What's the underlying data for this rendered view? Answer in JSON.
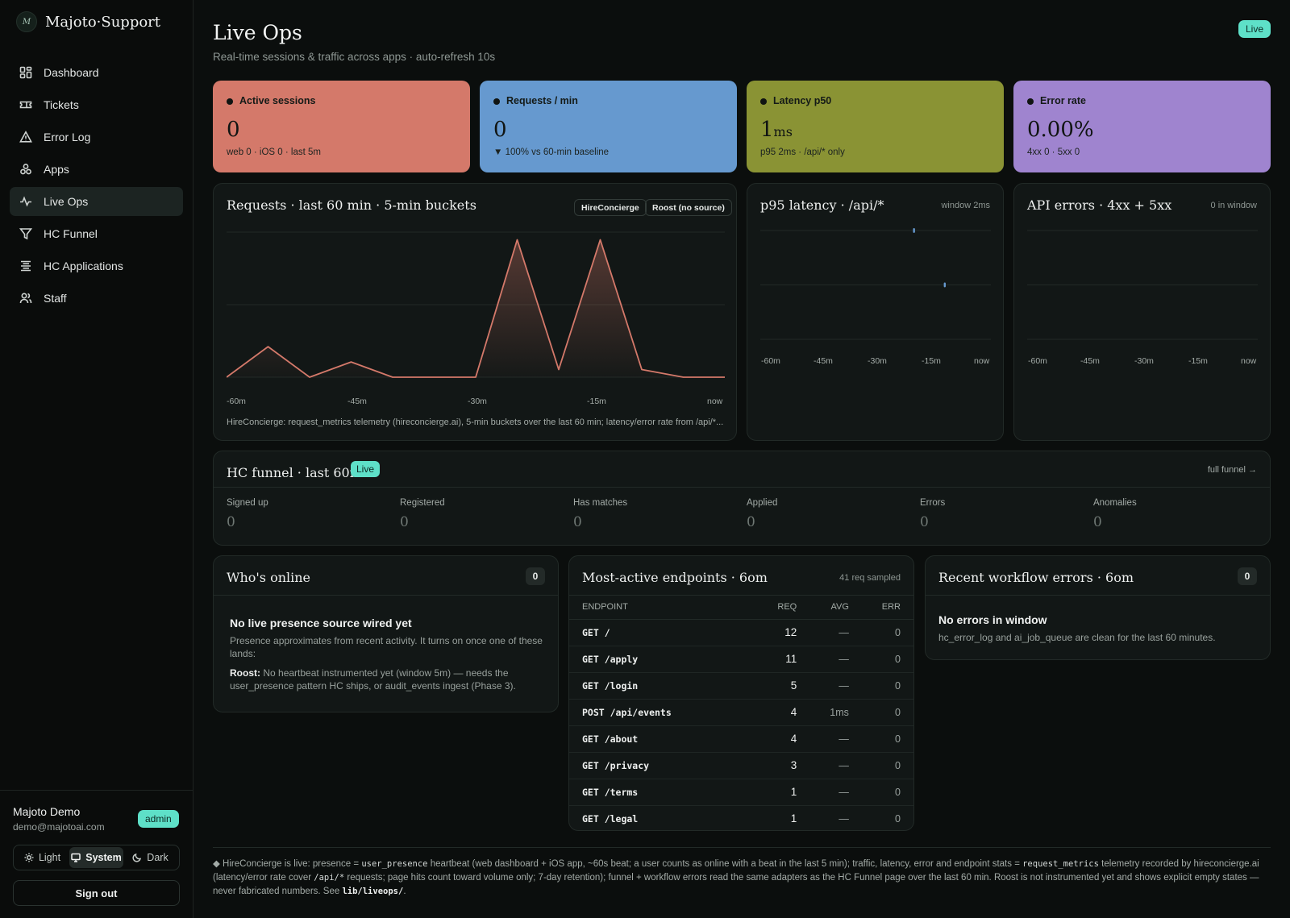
{
  "brand": {
    "logo_letter": "M",
    "name": "Majoto·Support"
  },
  "nav": [
    {
      "label": "Dashboard",
      "icon": "dashboard-icon"
    },
    {
      "label": "Tickets",
      "icon": "ticket-icon"
    },
    {
      "label": "Error Log",
      "icon": "warning-icon"
    },
    {
      "label": "Apps",
      "icon": "apps-icon"
    },
    {
      "label": "Live Ops",
      "icon": "activity-icon",
      "active": true
    },
    {
      "label": "HC Funnel",
      "icon": "funnel-icon"
    },
    {
      "label": "HC Applications",
      "icon": "list-icon"
    },
    {
      "label": "Staff",
      "icon": "users-icon"
    }
  ],
  "user": {
    "name": "Majoto Demo",
    "email": "demo@majotoai.com",
    "role": "admin"
  },
  "theme": {
    "light": "Light",
    "system": "System",
    "dark": "Dark",
    "selected": "System"
  },
  "signout_label": "Sign out",
  "header": {
    "title": "Live Ops",
    "subtitle": "Real-time sessions & traffic across apps · auto-refresh 10s",
    "status": "Live"
  },
  "kpis": [
    {
      "label": "Active sessions",
      "value": "0",
      "unit": "",
      "sub": "web 0 · iOS 0 · last 5m",
      "color": "#d4796a"
    },
    {
      "label": "Requests / min",
      "value": "0",
      "unit": "",
      "sub": "▼ 100% vs 60-min baseline",
      "color": "#6699cf"
    },
    {
      "label": "Latency p50",
      "value": "1",
      "unit": "ms",
      "sub": "p95 2ms · /api/* only",
      "color": "#8a9334"
    },
    {
      "label": "Error rate",
      "value": "0.00%",
      "unit": "",
      "sub": "4xx 0 · 5xx 0",
      "color": "#9f84cf"
    }
  ],
  "requests_card": {
    "title": "Requests · last 60 min · 5-min buckets",
    "chips": [
      "HireConcierge",
      "Roost (no source)"
    ],
    "footnote": "HireConcierge: request_metrics telemetry (hireconcierge.ai), 5-min buckets over the last 60 min; latency/error rate from /api/*..."
  },
  "latency_card": {
    "title": "p95 latency · /api/*",
    "note": "window 2ms"
  },
  "errors_card": {
    "title": "API errors · 4xx + 5xx",
    "note": "0 in window"
  },
  "chart_data": [
    {
      "type": "area",
      "title": "Requests · last 60 min · 5-min buckets",
      "x": [
        "-60m",
        "-55m",
        "-50m",
        "-45m",
        "-40m",
        "-35m",
        "-30m",
        "-25m",
        "-20m",
        "-15m",
        "-10m",
        "-5m",
        "now"
      ],
      "x_ticks": [
        "-60m",
        "-45m",
        "-30m",
        "-15m",
        "now"
      ],
      "series": [
        {
          "name": "HireConcierge",
          "values": [
            0,
            2,
            0,
            1,
            0,
            0,
            0,
            9,
            0.5,
            9,
            0.5,
            0,
            null
          ],
          "color": "#d4796a"
        }
      ],
      "ylim": [
        0,
        9.5
      ],
      "grid": true
    },
    {
      "type": "scatter",
      "title": "p95 latency · /api/*",
      "x_ticks": [
        "-60m",
        "-45m",
        "-30m",
        "-15m",
        "now"
      ],
      "points": [
        {
          "x": -20,
          "y": 2
        },
        {
          "x": -12,
          "y": 1
        }
      ],
      "ylim": [
        0,
        2
      ],
      "color": "#6699cf",
      "grid": true
    },
    {
      "type": "line",
      "title": "API errors · 4xx + 5xx",
      "x_ticks": [
        "-60m",
        "-45m",
        "-30m",
        "-15m",
        "now"
      ],
      "series": [],
      "grid": true
    }
  ],
  "funnel": {
    "title": "HC funnel · last 60m",
    "status": "Live",
    "link": "full funnel →",
    "stages": [
      {
        "label": "Signed up",
        "value": "0"
      },
      {
        "label": "Registered",
        "value": "0"
      },
      {
        "label": "Has matches",
        "value": "0"
      },
      {
        "label": "Applied",
        "value": "0"
      },
      {
        "label": "Errors",
        "value": "0"
      },
      {
        "label": "Anomalies",
        "value": "0"
      }
    ]
  },
  "whos_online": {
    "title": "Who's online",
    "count": "0",
    "empty_title": "No live presence source wired yet",
    "empty_text": "Presence approximates from recent activity. It turns on once one of these lands:",
    "roost_label": "Roost:",
    "roost_text": "No heartbeat instrumented yet (window 5m) — needs the user_presence pattern HC ships, or audit_events ingest (Phase 3)."
  },
  "endpoints": {
    "title": "Most-active endpoints · 6om",
    "note": "41 req sampled",
    "columns": [
      "ENDPOINT",
      "REQ",
      "AVG",
      "ERR"
    ],
    "rows": [
      [
        "GET /",
        "12",
        "—",
        "0"
      ],
      [
        "GET /apply",
        "11",
        "—",
        "0"
      ],
      [
        "GET /login",
        "5",
        "—",
        "0"
      ],
      [
        "POST /api/events",
        "4",
        "1ms",
        "0"
      ],
      [
        "GET /about",
        "4",
        "—",
        "0"
      ],
      [
        "GET /privacy",
        "3",
        "—",
        "0"
      ],
      [
        "GET /terms",
        "1",
        "—",
        "0"
      ],
      [
        "GET /legal",
        "1",
        "—",
        "0"
      ]
    ]
  },
  "workflow_errors": {
    "title": "Recent workflow errors · 6om",
    "count": "0",
    "empty_title": "No errors in window",
    "empty_text": "hc_error_log and ai_job_queue are clean for the last 60 minutes."
  },
  "bottom_note": {
    "p1": "◆ HireConcierge is live: presence = ",
    "c1": "user_presence",
    "p2": " heartbeat (web dashboard + iOS app, ~60s beat; a user counts as online with a beat in the last 5 min); traffic, latency, error and endpoint stats = ",
    "c2": "request_metrics",
    "p3": " telemetry recorded by hireconcierge.ai (latency/error rate cover ",
    "c3": "/api/*",
    "p4": " requests; page hits count toward volume only; 7-day retention); funnel + workflow errors read the same adapters as the HC Funnel page over the last 60 min. Roost is not instrumented yet and shows explicit empty states — never fabricated numbers. See ",
    "c4": "lib/liveops/",
    "p5": "."
  }
}
